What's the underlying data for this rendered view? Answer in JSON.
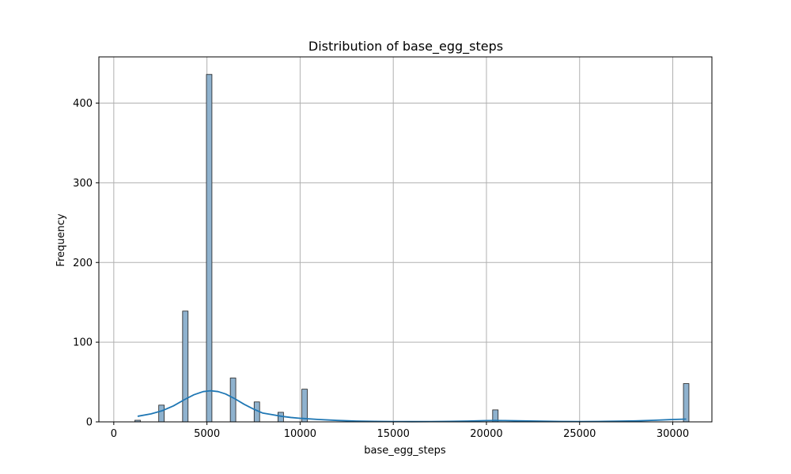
{
  "chart_data": {
    "type": "bar",
    "subtype": "histogram-with-kde",
    "title": "Distribution of base_egg_steps",
    "xlabel": "base_egg_steps",
    "ylabel": "Frequency",
    "xlim": [
      -800,
      32100
    ],
    "ylim": [
      0,
      458
    ],
    "xticks": [
      0,
      5000,
      10000,
      15000,
      20000,
      25000,
      30000
    ],
    "yticks": [
      0,
      100,
      200,
      300,
      400
    ],
    "grid": true,
    "bin_width": 294,
    "bars": [
      {
        "x": 1280,
        "value": 2
      },
      {
        "x": 2560,
        "value": 21
      },
      {
        "x": 3840,
        "value": 139
      },
      {
        "x": 5120,
        "value": 436
      },
      {
        "x": 6400,
        "value": 55
      },
      {
        "x": 7680,
        "value": 25
      },
      {
        "x": 8960,
        "value": 12
      },
      {
        "x": 10240,
        "value": 41
      },
      {
        "x": 20480,
        "value": 15
      },
      {
        "x": 30720,
        "value": 48
      }
    ],
    "kde": {
      "x": [
        1280,
        2000,
        2600,
        3200,
        3800,
        4300,
        4800,
        5200,
        5600,
        6000,
        6500,
        7000,
        7500,
        8000,
        8500,
        9000,
        9500,
        10000,
        11000,
        12000,
        13000,
        14000,
        15000,
        16000,
        17000,
        18000,
        19000,
        20000,
        20500,
        21000,
        22000,
        23000,
        24000,
        25000,
        26000,
        27000,
        28000,
        29000,
        30000,
        30720
      ],
      "y": [
        7,
        10,
        14,
        20,
        28,
        34,
        38,
        39,
        38,
        35,
        29,
        22,
        16,
        11,
        9,
        7,
        5.5,
        4.5,
        3,
        1.8,
        1,
        0.6,
        0.4,
        0.3,
        0.4,
        0.6,
        1,
        1.6,
        1.7,
        1.6,
        1.2,
        0.8,
        0.5,
        0.4,
        0.5,
        0.8,
        1.2,
        2,
        3,
        3.5
      ]
    },
    "colors": {
      "bar_fill": "#8fb2ce",
      "bar_edge": "#1f1f1f",
      "kde_line": "#1f77b4",
      "grid": "#b0b0b0"
    }
  }
}
